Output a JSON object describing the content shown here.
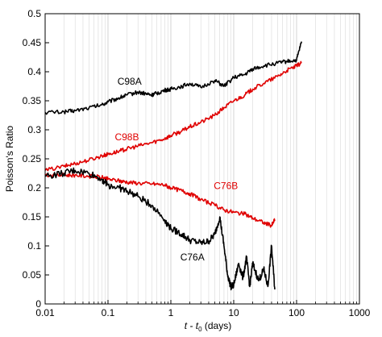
{
  "chart_data": {
    "type": "line",
    "title": "",
    "xlabel": {
      "pre": "t - t",
      "sub": "0",
      "post": " (days)"
    },
    "ylabel": "Poisson's Ratio",
    "xscale": "log",
    "xlim": [
      0.01,
      1000
    ],
    "ylim": [
      0,
      0.5
    ],
    "grid": "vertical-minor",
    "legend": "none",
    "x_tick_labels": [
      "0.01",
      "0.1",
      "1",
      "10",
      "100",
      "1000"
    ],
    "x_ticks": [
      0.01,
      0.1,
      1,
      10,
      100,
      1000
    ],
    "y_tick_labels": [
      "0",
      "0.05",
      "0.1",
      "0.15",
      "0.2",
      "0.25",
      "0.3",
      "0.35",
      "0.4",
      "0.45",
      "0.5"
    ],
    "y_ticks": [
      0,
      0.05,
      0.1,
      0.15,
      0.2,
      0.25,
      0.3,
      0.35,
      0.4,
      0.45,
      0.5
    ],
    "series": [
      {
        "name": "C98A",
        "color": "#000000",
        "label_at": [
          0.22,
          0.378
        ],
        "x": [
          0.01,
          0.02,
          0.03,
          0.05,
          0.08,
          0.1,
          0.15,
          0.2,
          0.3,
          0.4,
          0.5,
          0.6,
          0.8,
          1,
          1.5,
          2,
          3,
          5,
          7,
          10,
          15,
          20,
          30,
          50,
          70,
          100,
          120
        ],
        "y": [
          0.33,
          0.331,
          0.333,
          0.338,
          0.343,
          0.348,
          0.355,
          0.36,
          0.365,
          0.362,
          0.36,
          0.363,
          0.368,
          0.37,
          0.375,
          0.38,
          0.373,
          0.385,
          0.375,
          0.39,
          0.395,
          0.405,
          0.41,
          0.415,
          0.418,
          0.42,
          0.452
        ]
      },
      {
        "name": "C98B",
        "color": "#e00000",
        "label_at": [
          0.2,
          0.282
        ],
        "x": [
          0.01,
          0.02,
          0.03,
          0.05,
          0.08,
          0.1,
          0.15,
          0.2,
          0.3,
          0.5,
          0.8,
          1,
          1.5,
          2,
          3,
          5,
          7,
          10,
          15,
          20,
          30,
          50,
          70,
          100,
          120
        ],
        "y": [
          0.23,
          0.237,
          0.242,
          0.248,
          0.255,
          0.258,
          0.263,
          0.267,
          0.272,
          0.278,
          0.285,
          0.29,
          0.298,
          0.305,
          0.313,
          0.325,
          0.338,
          0.35,
          0.36,
          0.37,
          0.38,
          0.392,
          0.402,
          0.41,
          0.415
        ]
      },
      {
        "name": "C76B",
        "color": "#e00000",
        "label_at": [
          7.5,
          0.198
        ],
        "x": [
          0.01,
          0.02,
          0.03,
          0.05,
          0.08,
          0.1,
          0.15,
          0.2,
          0.3,
          0.5,
          0.8,
          1,
          1.5,
          2,
          3,
          5,
          7,
          10,
          15,
          20,
          30,
          40,
          45
        ],
        "y": [
          0.222,
          0.222,
          0.222,
          0.22,
          0.218,
          0.215,
          0.212,
          0.21,
          0.208,
          0.207,
          0.205,
          0.2,
          0.195,
          0.19,
          0.18,
          0.17,
          0.162,
          0.158,
          0.155,
          0.148,
          0.14,
          0.135,
          0.145
        ]
      },
      {
        "name": "C76A",
        "color": "#000000",
        "label_at": [
          2.2,
          0.075
        ],
        "x": [
          0.01,
          0.02,
          0.03,
          0.05,
          0.08,
          0.1,
          0.15,
          0.2,
          0.3,
          0.5,
          0.8,
          1,
          1.5,
          2,
          3,
          4,
          5,
          6,
          7,
          8,
          9,
          10,
          12,
          14,
          16,
          18,
          20,
          25,
          30,
          35,
          40,
          45
        ],
        "y": [
          0.22,
          0.225,
          0.23,
          0.225,
          0.215,
          0.205,
          0.2,
          0.195,
          0.185,
          0.17,
          0.145,
          0.13,
          0.12,
          0.11,
          0.105,
          0.108,
          0.12,
          0.15,
          0.1,
          0.05,
          0.03,
          0.032,
          0.07,
          0.045,
          0.08,
          0.03,
          0.07,
          0.04,
          0.06,
          0.03,
          0.1,
          0.025
        ]
      }
    ]
  }
}
